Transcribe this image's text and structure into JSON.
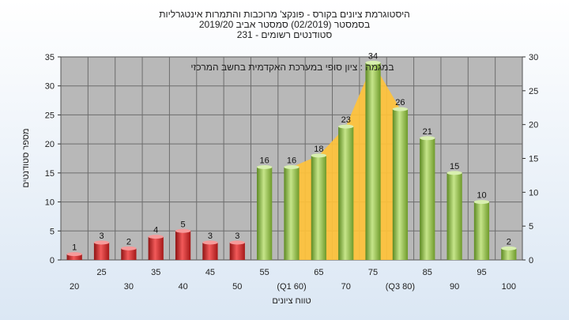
{
  "chart_data": {
    "type": "bar",
    "title_lines": [
      "היסטוגרמת ציונים בקורס - פונקצ' מרוכבות והתמרות אינטגרליות",
      "בסמסטר   (02/2019)  סמסטר אביב 2019/20",
      "סטודנטים רשומים - 231"
    ],
    "annotation": "במגמה : ציון סופי במערכת האקדמית בחשב המרכזי",
    "xlabel": "טווח ציונים",
    "ylabel": "מספר סטודנטים",
    "ylim": [
      0,
      35
    ],
    "y_ticks": [
      0,
      5,
      10,
      15,
      20,
      25,
      30,
      35
    ],
    "y2lim": [
      0,
      30
    ],
    "y2_ticks": [
      0,
      5,
      10,
      15,
      20,
      25,
      30
    ],
    "categories": [
      "20",
      "25",
      "30",
      "35",
      "40",
      "45",
      "50",
      "55",
      "(Q1 60)",
      "65",
      "70",
      "75",
      "(Q3 80)",
      "85",
      "90",
      "95",
      "100"
    ],
    "values": [
      1,
      3,
      2,
      4,
      5,
      3,
      3,
      16,
      16,
      18,
      23,
      34,
      26,
      21,
      15,
      10,
      2
    ],
    "bar_colors": [
      "red",
      "red",
      "red",
      "red",
      "red",
      "red",
      "red",
      "green",
      "green",
      "green",
      "green",
      "green",
      "green",
      "green",
      "green",
      "green",
      "green"
    ],
    "area": {
      "start_category": "(Q1 60)",
      "end_category": "(Q3 80)",
      "values": [
        16,
        18,
        23,
        34,
        26
      ]
    },
    "grid": true,
    "colors": {
      "plot_bg": "#b8b8b8",
      "grid": "#6d6d6d",
      "red_bar": "#e03a3a",
      "green_bar": "#8fbf45",
      "area_fill": "#ffc23a"
    }
  }
}
